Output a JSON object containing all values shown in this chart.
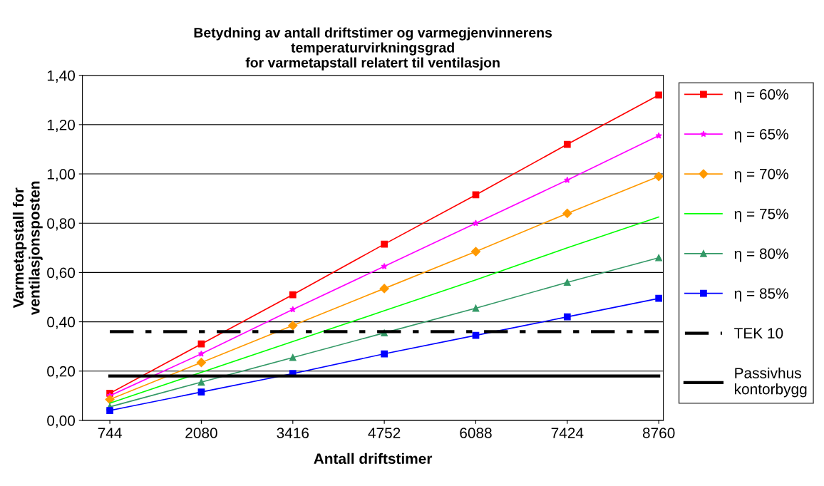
{
  "chart_data": {
    "type": "line",
    "title": "Betydning av antall driftstimer og varmegjenvinnerens\ntemperaturvirkningsgrad\nfor varmetapstall relatert til ventilasjon",
    "xlabel": "Antall driftstimer",
    "ylabel": "Varmetapstall for\nventilasjonsposten",
    "categories": [
      "744",
      "2080",
      "3416",
      "4752",
      "6088",
      "7424",
      "8760"
    ],
    "series": [
      {
        "name": "η = 60%",
        "color": "#ff0000",
        "marker": "square",
        "values": [
          0.11,
          0.31,
          0.51,
          0.715,
          0.915,
          1.12,
          1.32
        ]
      },
      {
        "name": "η = 65%",
        "color": "#ff00ff",
        "marker": "star",
        "values": [
          0.1,
          0.27,
          0.45,
          0.625,
          0.8,
          0.975,
          1.155
        ]
      },
      {
        "name": "η = 70%",
        "color": "#ff9900",
        "marker": "diamond",
        "values": [
          0.085,
          0.235,
          0.385,
          0.535,
          0.685,
          0.84,
          0.99
        ]
      },
      {
        "name": "η = 75%",
        "color": "#00ff00",
        "marker": "none",
        "values": [
          0.07,
          0.195,
          0.32,
          0.445,
          0.57,
          0.7,
          0.825
        ]
      },
      {
        "name": "η = 80%",
        "color": "#339966",
        "marker": "triangle",
        "values": [
          0.055,
          0.155,
          0.255,
          0.355,
          0.455,
          0.56,
          0.66
        ]
      },
      {
        "name": "η = 85%",
        "color": "#0000ff",
        "marker": "square",
        "values": [
          0.04,
          0.115,
          0.19,
          0.27,
          0.345,
          0.42,
          0.495
        ]
      },
      {
        "name": "TEK 10",
        "color": "#000000",
        "marker": "none",
        "line_style": "dashed",
        "values": [
          0.36,
          0.36,
          0.36,
          0.36,
          0.36,
          0.36,
          0.36
        ]
      },
      {
        "name": "Passivhus\nkontorbygg",
        "color": "#000000",
        "marker": "none",
        "line_style": "solid",
        "values": [
          0.18,
          0.18,
          0.18,
          0.18,
          0.18,
          0.18,
          0.18
        ]
      }
    ],
    "ylim": [
      0,
      1.4
    ],
    "yticks": [
      {
        "value": 0,
        "label": "0,00"
      },
      {
        "value": 0.2,
        "label": "0,20"
      },
      {
        "value": 0.4,
        "label": "0,40"
      },
      {
        "value": 0.6,
        "label": "0,60"
      },
      {
        "value": 0.8,
        "label": "0,80"
      },
      {
        "value": 1.0,
        "label": "1,00"
      },
      {
        "value": 1.2,
        "label": "1,20"
      },
      {
        "value": 1.4,
        "label": "1,40"
      }
    ],
    "grid": "y",
    "legend": "right"
  }
}
